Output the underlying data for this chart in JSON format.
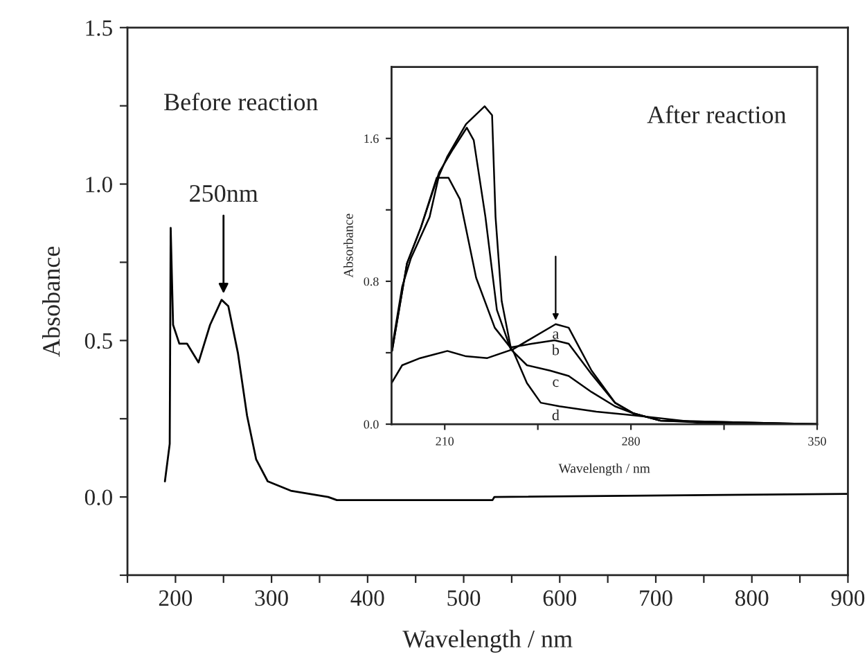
{
  "chart_data": [
    {
      "type": "line",
      "xlabel": "Wavelength / nm",
      "ylabel": "Absobance",
      "xlim": [
        150,
        900
      ],
      "ylim": [
        -0.25,
        1.5
      ],
      "xticks": [
        {
          "value": 150,
          "label": null
        },
        200,
        {
          "value": 250,
          "label": null
        },
        300,
        {
          "value": 350,
          "label": null
        },
        400,
        {
          "value": 450,
          "label": null
        },
        500,
        {
          "value": 550,
          "label": null
        },
        600,
        {
          "value": 650,
          "label": null
        },
        700,
        {
          "value": 750,
          "label": null
        },
        800,
        {
          "value": 850,
          "label": null
        },
        900
      ],
      "yticks": [
        {
          "value": -0.25,
          "label": null
        },
        {
          "value": 0,
          "label": "0.0"
        },
        {
          "value": 0.25,
          "label": null
        },
        0.5,
        {
          "value": 0.75,
          "label": null
        },
        {
          "value": 1.0,
          "label": "1.0"
        },
        {
          "value": 1.25,
          "label": null
        },
        1.5
      ],
      "marker": "none",
      "line_style": "solid",
      "series": [
        {
          "color": "#000000",
          "x": [
            189,
            194,
            195,
            197.5,
            204,
            212,
            224,
            236,
            248,
            255,
            265,
            274.5,
            284,
            296,
            320,
            359,
            368,
            530,
            532,
            900
          ],
          "values": [
            0.05,
            0.17,
            0.86,
            0.55,
            0.49,
            0.49,
            0.43,
            0.55,
            0.63,
            0.61,
            0.46,
            0.26,
            0.12,
            0.05,
            0.02,
            0.0,
            -0.01,
            -0.01,
            0.0,
            0.01
          ]
        }
      ],
      "annotations": [
        "Before reaction",
        {
          "text": "250nm",
          "x": 250,
          "y": 0.65
        }
      ]
    },
    {
      "type": "line",
      "xlabel": "Wavelength / nm",
      "ylabel": "Absorbance",
      "xlim": [
        190,
        350
      ],
      "ylim": [
        0,
        2.0
      ],
      "xticks": [
        210,
        {
          "value": 245,
          "label": null
        },
        280,
        {
          "value": 315,
          "label": null
        },
        350
      ],
      "yticks": [
        {
          "value": 0,
          "label": "0.0"
        },
        {
          "value": 0.4,
          "label": null
        },
        0.8,
        {
          "value": 1.2,
          "label": null
        },
        1.6
      ],
      "marker": "none",
      "line_style": "solid",
      "series": [
        {
          "name": "a",
          "color": "#000000",
          "x": [
            190,
            194,
            200.8,
            211,
            218,
            226,
            235.7,
            251.7,
            256.6,
            265.2,
            274,
            281,
            291,
            305,
            350
          ],
          "values": [
            0.23,
            0.33,
            0.37,
            0.41,
            0.38,
            0.37,
            0.42,
            0.56,
            0.54,
            0.3,
            0.12,
            0.06,
            0.02,
            0.01,
            0.0
          ]
        },
        {
          "name": "b",
          "color": "#000000",
          "x": [
            190,
            194,
            197.3,
            204.3,
            207.8,
            211,
            218,
            225,
            227.8,
            229.1,
            231.4,
            234.8,
            242.7,
            251.3,
            256.6,
            265.2,
            274,
            281,
            291,
            350
          ],
          "values": [
            0.41,
            0.77,
            0.93,
            1.16,
            1.39,
            1.5,
            1.68,
            1.78,
            1.73,
            1.16,
            0.69,
            0.43,
            0.45,
            0.47,
            0.45,
            0.28,
            0.12,
            0.06,
            0.02,
            0.0
          ]
        },
        {
          "name": "c",
          "color": "#000000",
          "x": [
            190.2,
            195.8,
            201,
            207.9,
            213.1,
            218.3,
            220.9,
            225.3,
            229.6,
            234.8,
            240.9,
            249.6,
            256.6,
            265.2,
            274,
            281,
            291,
            350
          ],
          "values": [
            0.41,
            0.9,
            1.1,
            1.41,
            1.54,
            1.66,
            1.59,
            1.16,
            0.64,
            0.42,
            0.33,
            0.3,
            0.27,
            0.18,
            0.1,
            0.06,
            0.02,
            0.0
          ]
        },
        {
          "name": "d",
          "color": "#000000",
          "x": [
            190.2,
            195.8,
            201,
            207,
            211.4,
            215.7,
            221.8,
            228.8,
            235.7,
            240.9,
            246.1,
            253.1,
            267,
            281,
            305,
            350
          ],
          "values": [
            0.41,
            0.9,
            1.1,
            1.38,
            1.38,
            1.26,
            0.82,
            0.54,
            0.41,
            0.23,
            0.12,
            0.1,
            0.07,
            0.05,
            0.01,
            0.0
          ]
        }
      ],
      "annotations": [
        "After reaction"
      ]
    }
  ]
}
